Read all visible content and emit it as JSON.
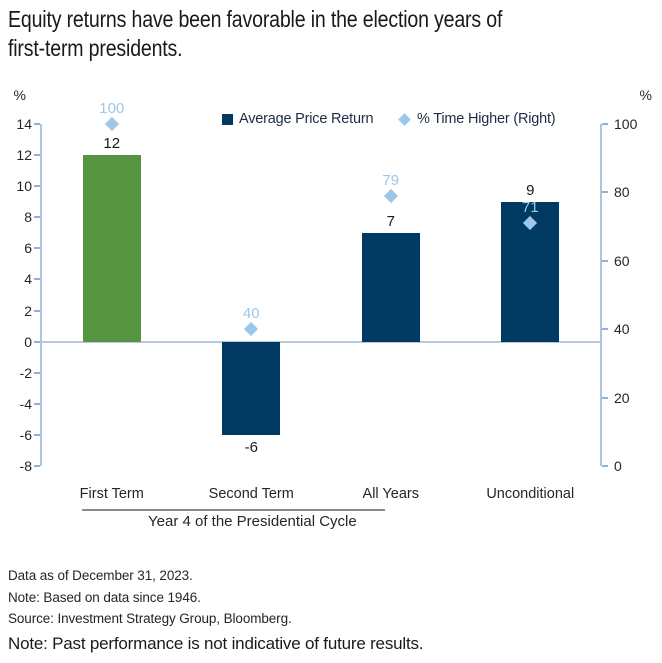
{
  "title": {
    "line1": "Equity returns have been favorable in the election years of",
    "line2": "first-term presidents."
  },
  "legend": [
    {
      "label": "Average Price Return",
      "marker": "square",
      "color": "#003A63"
    },
    {
      "label": "% Time Higher (Right)",
      "marker": "diamond",
      "color": "#9DC7E9"
    }
  ],
  "axes": {
    "left_unit": "%",
    "right_unit": "%",
    "left_ticks": [
      14,
      12,
      10,
      8,
      6,
      4,
      2,
      0,
      -2,
      -4,
      -6,
      -8
    ],
    "right_ticks": [
      100,
      80,
      60,
      40,
      20,
      0
    ]
  },
  "chart_data": {
    "type": "bar",
    "categories": [
      "First Term",
      "Second Term",
      "All Years",
      "Unconditional"
    ],
    "series": [
      {
        "name": "Average Price Return",
        "type": "bar",
        "axis": "left",
        "values": [
          12,
          -6,
          7,
          9
        ],
        "colors": [
          "#579442",
          "#003A63",
          "#003A63",
          "#003A63"
        ]
      },
      {
        "name": "% Time Higher (Right)",
        "type": "scatter",
        "marker": "diamond",
        "axis": "right",
        "values": [
          100,
          40,
          79,
          71
        ],
        "color": "#9DC7E9"
      }
    ],
    "left_ylabel": "%",
    "right_ylabel": "%",
    "left_ylim": [
      -8,
      14
    ],
    "right_ylim": [
      0,
      100
    ],
    "grid": false,
    "legend_position": "top",
    "group_label": "Year 4 of the Presidential Cycle",
    "group_span_categories": [
      "First Term",
      "Second Term",
      "All Years"
    ]
  },
  "notes": [
    "Data as of December 31, 2023.",
    "Note: Based on data since 1946.",
    "Source: Investment Strategy Group, Bloomberg."
  ],
  "disclaimer": "Note: Past performance is not indicative of future results.",
  "colors": {
    "navy": "#003A63",
    "green": "#579442",
    "light_blue": "#9DC7E9",
    "axis_line": "#ACC6E2",
    "zero_line": "#B6C9DC"
  }
}
